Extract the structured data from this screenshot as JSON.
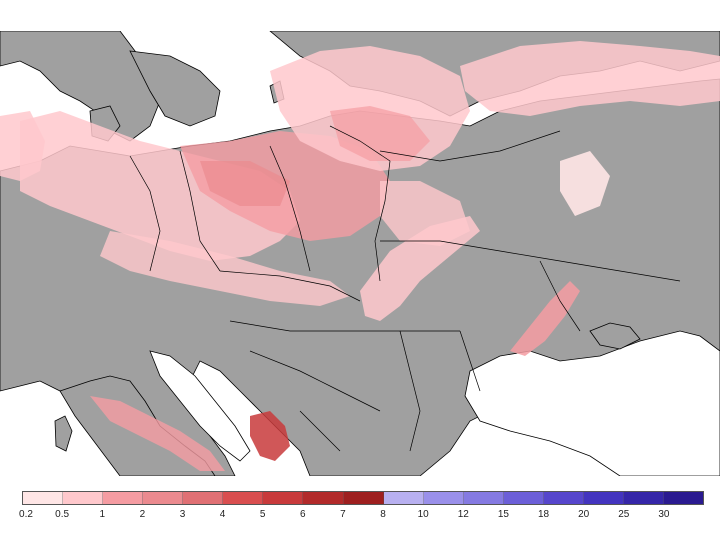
{
  "map": {
    "land_color": "#a0a0a0",
    "sea_color": "#ffffff",
    "border_color": "#000000"
  },
  "legend": {
    "colors": [
      "#ffe6e6",
      "#ffc8cc",
      "#f59ca2",
      "#eb8a8f",
      "#e07074",
      "#d94e4f",
      "#c83a3b",
      "#b22a2a",
      "#9e1f1f",
      "#b8b0f0",
      "#9a90ea",
      "#857ae2",
      "#6c5fd8",
      "#5646cc",
      "#4334bf",
      "#3526a8",
      "#2a1a90"
    ],
    "ticks": [
      "0.2",
      "0.5",
      "1",
      "2",
      "3",
      "4",
      "5",
      "6",
      "7",
      "8",
      "10",
      "12",
      "15",
      "18",
      "20",
      "25",
      "30"
    ]
  }
}
